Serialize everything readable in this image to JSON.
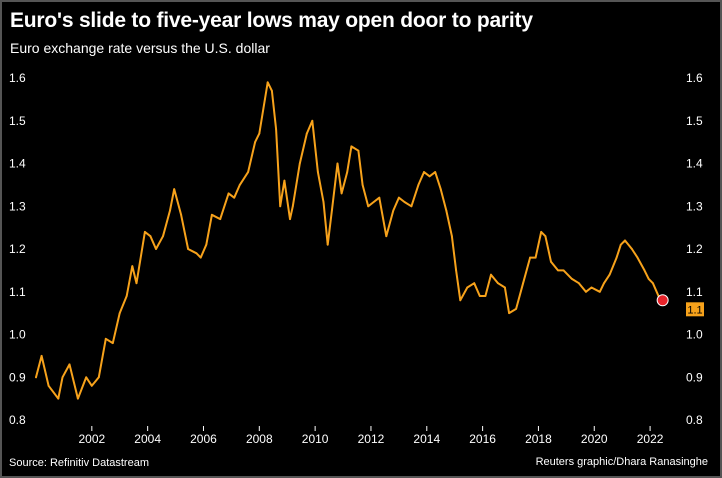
{
  "title": "Euro's slide to five-year lows may open door to parity",
  "subtitle": "Euro exchange rate versus the U.S. dollar",
  "source": "Source: Refinitiv Datastream",
  "credit": "Reuters graphic/Dhara Ranasinghe",
  "colors": {
    "line": "#f7a21b",
    "marker": "#e8242b",
    "background": "#000000",
    "text": "#ffffff"
  },
  "chart_data": {
    "type": "line",
    "title": "Euro's slide to five-year lows may open door to parity",
    "subtitle": "Euro exchange rate versus the U.S. dollar",
    "xlabel": "",
    "ylabel": "",
    "xlim": [
      2000.0,
      2023.0
    ],
    "ylim": [
      0.8,
      1.6
    ],
    "x_ticks": [
      "2002",
      "2004",
      "2006",
      "2008",
      "2010",
      "2012",
      "2014",
      "2016",
      "2018",
      "2020",
      "2022"
    ],
    "y_ticks_left": [
      "0.8",
      "0.9",
      "1.0",
      "1.1",
      "1.2",
      "1.3",
      "1.4",
      "1.5",
      "1.6"
    ],
    "y_ticks_right": [
      "0.8",
      "0.9",
      "1.0",
      "1.1",
      "1.2",
      "1.3",
      "1.4",
      "1.5",
      "1.6"
    ],
    "grid": false,
    "last_value_label": "1.1",
    "series": [
      {
        "x": [
          2000.0,
          2000.2,
          2000.45,
          2000.8,
          2000.95,
          2001.2,
          2001.5,
          2001.8,
          2002.0,
          2002.25,
          2002.5,
          2002.75,
          2003.0,
          2003.25,
          2003.45,
          2003.6,
          2003.9,
          2004.1,
          2004.3,
          2004.55,
          2004.8,
          2004.95,
          2005.2,
          2005.45,
          2005.75,
          2005.9,
          2006.1,
          2006.3,
          2006.6,
          2006.9,
          2007.1,
          2007.3,
          2007.6,
          2007.85,
          2008.0,
          2008.2,
          2008.3,
          2008.45,
          2008.6,
          2008.75,
          2008.9,
          2009.1,
          2009.2,
          2009.45,
          2009.7,
          2009.9,
          2010.1,
          2010.3,
          2010.45,
          2010.6,
          2010.8,
          2010.95,
          2011.15,
          2011.3,
          2011.55,
          2011.7,
          2011.9,
          2012.1,
          2012.3,
          2012.55,
          2012.8,
          2013.0,
          2013.2,
          2013.45,
          2013.7,
          2013.9,
          2014.1,
          2014.3,
          2014.5,
          2014.7,
          2014.9,
          2015.05,
          2015.2,
          2015.45,
          2015.7,
          2015.9,
          2016.1,
          2016.3,
          2016.55,
          2016.8,
          2016.95,
          2017.2,
          2017.45,
          2017.7,
          2017.9,
          2018.1,
          2018.25,
          2018.45,
          2018.7,
          2018.9,
          2019.2,
          2019.45,
          2019.7,
          2019.9,
          2020.2,
          2020.35,
          2020.55,
          2020.8,
          2020.95,
          2021.1,
          2021.35,
          2021.55,
          2021.8,
          2021.95,
          2022.1,
          2022.3,
          2022.45
        ],
        "values": [
          0.9,
          0.95,
          0.88,
          0.85,
          0.9,
          0.93,
          0.85,
          0.9,
          0.88,
          0.9,
          0.99,
          0.98,
          1.05,
          1.09,
          1.16,
          1.12,
          1.24,
          1.23,
          1.2,
          1.23,
          1.29,
          1.34,
          1.28,
          1.2,
          1.19,
          1.18,
          1.21,
          1.28,
          1.27,
          1.33,
          1.32,
          1.35,
          1.38,
          1.45,
          1.47,
          1.55,
          1.59,
          1.57,
          1.48,
          1.3,
          1.36,
          1.27,
          1.3,
          1.4,
          1.47,
          1.5,
          1.38,
          1.31,
          1.21,
          1.29,
          1.4,
          1.33,
          1.38,
          1.44,
          1.43,
          1.35,
          1.3,
          1.31,
          1.32,
          1.23,
          1.29,
          1.32,
          1.31,
          1.3,
          1.35,
          1.38,
          1.37,
          1.38,
          1.34,
          1.29,
          1.23,
          1.15,
          1.08,
          1.11,
          1.12,
          1.09,
          1.09,
          1.14,
          1.12,
          1.11,
          1.05,
          1.06,
          1.12,
          1.18,
          1.18,
          1.24,
          1.23,
          1.17,
          1.15,
          1.15,
          1.13,
          1.12,
          1.1,
          1.11,
          1.1,
          1.12,
          1.14,
          1.18,
          1.21,
          1.22,
          1.2,
          1.18,
          1.15,
          1.13,
          1.12,
          1.09,
          1.08
        ]
      }
    ]
  }
}
